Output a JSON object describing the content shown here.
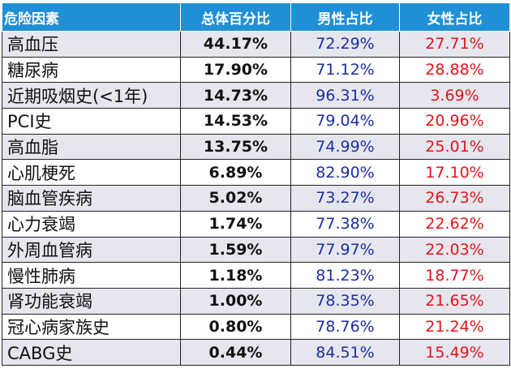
{
  "table": {
    "headers": [
      "危险因素",
      "总体百分比",
      "男性占比",
      "女性占比"
    ],
    "rows": [
      {
        "factor": "高血压",
        "overall": "44.17%",
        "male": "72.29%",
        "female": "27.71%"
      },
      {
        "factor": "糖尿病",
        "overall": "17.90%",
        "male": "71.12%",
        "female": "28.88%"
      },
      {
        "factor": "近期吸烟史(<1年)",
        "overall": "14.73%",
        "male": "96.31%",
        "female": "3.69%"
      },
      {
        "factor": "PCI史",
        "overall": "14.53%",
        "male": "79.04%",
        "female": "20.96%"
      },
      {
        "factor": "高血脂",
        "overall": "13.75%",
        "male": "74.99%",
        "female": "25.01%"
      },
      {
        "factor": "心肌梗死",
        "overall": "6.89%",
        "male": "82.90%",
        "female": "17.10%"
      },
      {
        "factor": "脑血管疾病",
        "overall": "5.02%",
        "male": "73.27%",
        "female": "26.73%"
      },
      {
        "factor": "心力衰竭",
        "overall": "1.74%",
        "male": "77.38%",
        "female": "22.62%"
      },
      {
        "factor": "外周血管病",
        "overall": "1.59%",
        "male": "77.97%",
        "female": "22.03%"
      },
      {
        "factor": "慢性肺病",
        "overall": "1.18%",
        "male": "81.23%",
        "female": "18.77%"
      },
      {
        "factor": "肾功能衰竭",
        "overall": "1.00%",
        "male": "78.35%",
        "female": "21.65%"
      },
      {
        "factor": "冠心病家族史",
        "overall": "0.80%",
        "male": "78.76%",
        "female": "21.24%"
      },
      {
        "factor": "CABG史",
        "overall": "0.44%",
        "male": "84.51%",
        "female": "15.49%"
      }
    ]
  },
  "colors": {
    "header_bg": "#1f8fd6",
    "male_text": "#1c2fa0",
    "female_text": "#e3141a"
  }
}
